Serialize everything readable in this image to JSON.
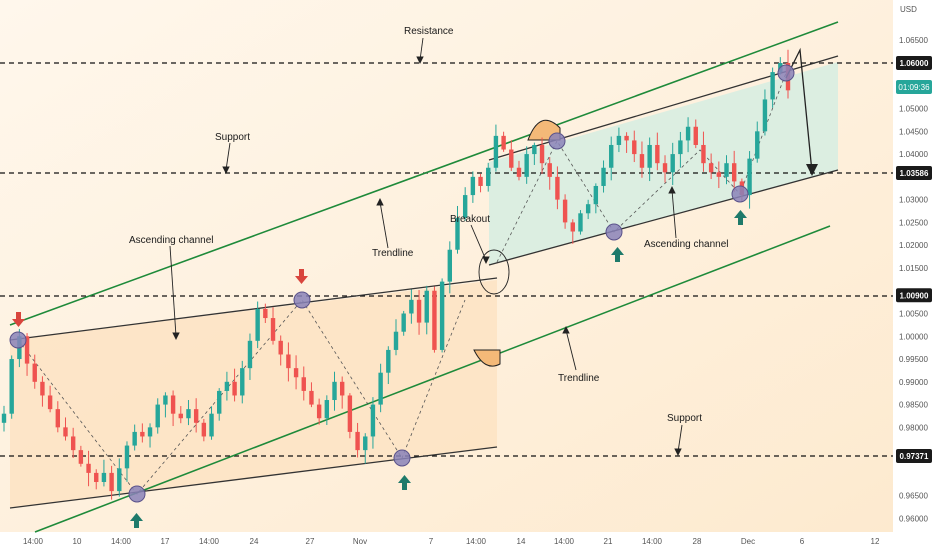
{
  "chart_data": {
    "type": "candlestick",
    "currency_label": "USD",
    "colors": {
      "up": "#26a69a",
      "down": "#ef5350",
      "channel_line": "#333333",
      "trendline": "#1e8a3a",
      "orange_zone": "#fde3c3",
      "green_zone": "#d6ede2",
      "arrow_up": "#1e7a6a",
      "arrow_down": "#d9453d",
      "marker": "#8a82b8",
      "price_tag": "#1a1a1a",
      "time_tag": "#26a69a"
    },
    "y_ticks": [
      "1.06500",
      "1.05500",
      "1.05000",
      "1.04500",
      "1.04000",
      "1.03000",
      "1.02500",
      "1.02000",
      "1.01500",
      "1.00500",
      "1.00000",
      "0.99500",
      "0.99000",
      "0.98500",
      "0.98000",
      "0.96500",
      "0.96000"
    ],
    "x_ticks": [
      "14:00",
      "10",
      "14:00",
      "17",
      "14:00",
      "24",
      "27",
      "Nov",
      "7",
      "14:00",
      "14",
      "14:00",
      "21",
      "14:00",
      "28",
      "Dec",
      "6",
      "12"
    ],
    "price_levels": [
      {
        "label": "1.06000",
        "value": 1.06
      },
      {
        "label": "1.03586",
        "value": 1.03586
      },
      {
        "label": "1.00900",
        "value": 1.009
      },
      {
        "label": "0.97371",
        "value": 0.97371
      }
    ],
    "current_price": {
      "value": 1.0534,
      "time": "01:09:36"
    },
    "annotations": {
      "resistance": "Resistance",
      "support_top": "Support",
      "ascending_channel_left": "Ascending channel",
      "trendline_upper": "Trendline",
      "breakout": "Breakout",
      "ascending_channel_right": "Ascending channel",
      "trendline_lower": "Trendline",
      "support_bottom": "Support"
    },
    "ylim": [
      0.9555,
      1.071
    ],
    "series": [
      {
        "type": "close",
        "values": [
          0.983,
          0.995,
          1.0,
          0.994,
          0.99,
          0.987,
          0.984,
          0.98,
          0.978,
          0.975,
          0.972,
          0.97,
          0.968,
          0.97,
          0.966,
          0.971,
          0.976,
          0.979,
          0.978,
          0.98,
          0.985,
          0.987,
          0.983,
          0.982,
          0.984,
          0.981,
          0.978,
          0.983,
          0.988,
          0.99,
          0.987,
          0.993,
          0.999,
          1.006,
          1.004,
          0.999,
          0.996,
          0.993,
          0.991,
          0.988,
          0.985,
          0.982,
          0.986,
          0.99,
          0.987,
          0.979,
          0.975,
          0.978,
          0.985,
          0.992,
          0.997,
          1.001,
          1.005,
          1.008,
          1.003,
          1.01,
          0.997,
          1.012,
          1.019,
          1.026,
          1.031,
          1.035,
          1.033,
          1.037,
          1.044,
          1.041,
          1.037,
          1.035,
          1.04,
          1.042,
          1.038,
          1.035,
          1.03,
          1.025,
          1.023,
          1.027,
          1.029,
          1.033,
          1.037,
          1.042,
          1.044,
          1.043,
          1.04,
          1.037,
          1.042,
          1.038,
          1.036,
          1.04,
          1.043,
          1.046,
          1.042,
          1.038,
          1.036,
          1.035,
          1.038,
          1.034,
          1.031,
          1.039,
          1.045,
          1.052,
          1.058,
          1.06,
          1.054
        ]
      }
    ]
  }
}
